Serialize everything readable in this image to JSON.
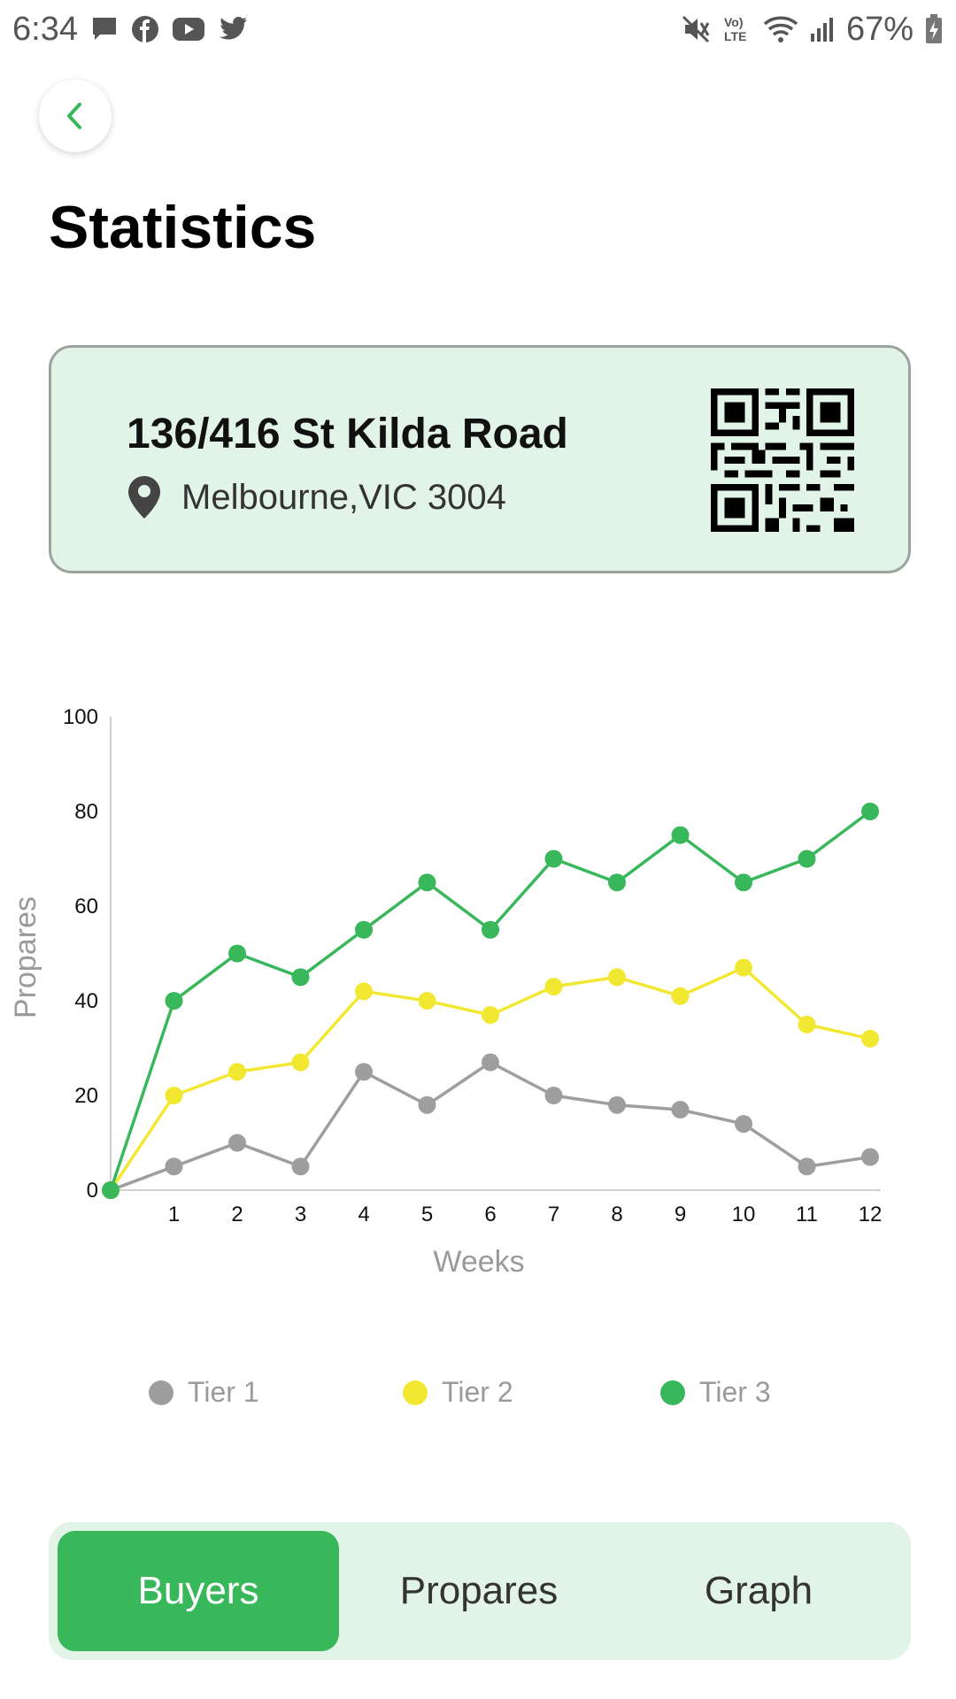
{
  "status_bar": {
    "time": "6:34",
    "battery": "67%",
    "left_icons": [
      "message-icon",
      "facebook-icon",
      "youtube-icon",
      "twitter-icon"
    ],
    "right_icons": [
      "mute-icon",
      "volte-icon",
      "wifi-icon",
      "signal-icon",
      "battery-icon"
    ],
    "volte_label_top": "Vo)",
    "volte_label_bottom": "LTE"
  },
  "header": {
    "back_icon": "chevron-left-icon",
    "title": "Statistics"
  },
  "address_card": {
    "street": "136/416 St Kilda Road",
    "city": "Melbourne,VIC 3004",
    "pin_icon": "location-pin-icon",
    "qr_icon": "qr-code-icon"
  },
  "colors": {
    "accent": "#38b75b",
    "card_bg": "#e2f3e7",
    "tier1": "#9e9e9e",
    "tier2": "#f2e832",
    "tier3": "#38b75b"
  },
  "chart_data": {
    "type": "line",
    "xlabel": "Weeks",
    "ylabel": "Propares",
    "x": [
      0,
      1,
      2,
      3,
      4,
      5,
      6,
      7,
      8,
      9,
      10,
      11,
      12
    ],
    "x_tick_labels": [
      "1",
      "2",
      "3",
      "4",
      "5",
      "6",
      "7",
      "8",
      "9",
      "10",
      "11",
      "12"
    ],
    "y_ticks": [
      0,
      20,
      40,
      60,
      80,
      100
    ],
    "ylim": [
      0,
      100
    ],
    "xlim": [
      0,
      12
    ],
    "grid": false,
    "legend_position": "bottom",
    "series": [
      {
        "name": "Tier 1",
        "color": "#9e9e9e",
        "values": [
          0,
          5,
          10,
          5,
          25,
          18,
          27,
          20,
          18,
          17,
          14,
          5,
          7
        ]
      },
      {
        "name": "Tier 2",
        "color": "#f2e832",
        "values": [
          0,
          20,
          25,
          27,
          42,
          40,
          37,
          43,
          45,
          41,
          47,
          35,
          32
        ]
      },
      {
        "name": "Tier 3",
        "color": "#38b75b",
        "values": [
          0,
          40,
          50,
          45,
          55,
          65,
          55,
          70,
          65,
          75,
          65,
          70,
          80
        ]
      }
    ]
  },
  "tabs": [
    {
      "label": "Buyers",
      "active": true
    },
    {
      "label": "Propares",
      "active": false
    },
    {
      "label": "Graph",
      "active": false
    }
  ]
}
